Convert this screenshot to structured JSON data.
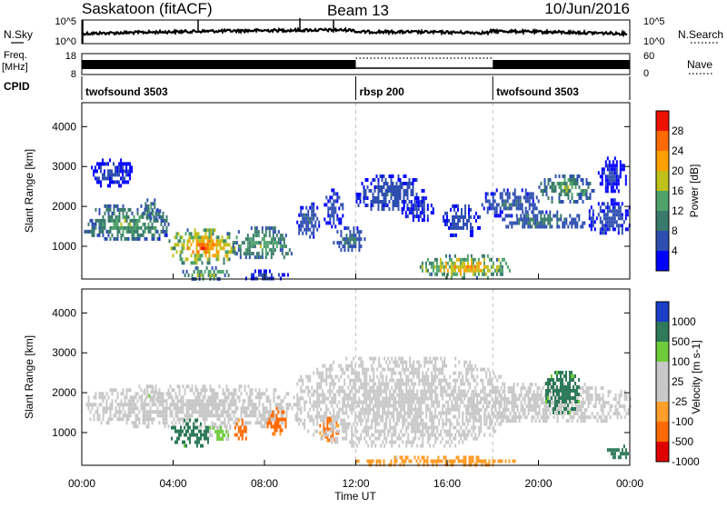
{
  "header": {
    "station": "Saskatoon (fitACF)",
    "beam": "Beam 13",
    "date": "10/Jun/2016"
  },
  "summary": {
    "nsky_label": "N.Sky",
    "nsky_ticks": [
      "10^5",
      "10^0"
    ],
    "nsearch_label": "N.Search",
    "nsearch_ticks": [
      "10^5",
      "10^0"
    ],
    "freq_label": "Freq.",
    "freq_unit": "[MHz]",
    "freq_ticks": [
      "18",
      "8"
    ],
    "nave_label": "Nave",
    "nave_ticks": [
      "60",
      "0"
    ],
    "cpid_label": "CPID",
    "cpid_segments": [
      {
        "start": 0,
        "end": 12,
        "label": "twofsound 3503"
      },
      {
        "start": 12,
        "end": 18,
        "label": "rbsp 200"
      },
      {
        "start": 18,
        "end": 24,
        "label": "twofsound 3503"
      }
    ]
  },
  "colors": {
    "power": [
      "#0000ff",
      "#2e4eb0",
      "#3a7a6c",
      "#4fa36a",
      "#c0c01a",
      "#ffa000",
      "#ff6a00",
      "#ee1100"
    ],
    "velocity": [
      "#e00000",
      "#ff6a00",
      "#ff9e2a",
      "#c8c8c8",
      "#c8c8c8",
      "#6ecc3a",
      "#2e7a5a",
      "#1a3ec8"
    ],
    "ground_scatter": "#c8c8c8"
  },
  "chart_data": [
    {
      "type": "heatmap",
      "panel": "power",
      "xlabel": "",
      "ylabel": "Slant Range [km]",
      "xlim": [
        0,
        24
      ],
      "ylim": [
        180,
        4600
      ],
      "yticks": [
        "1000",
        "2000",
        "3000",
        "4000"
      ],
      "xticks": [],
      "colorbar_label": "Power [dB]",
      "colorbar_ticks": [
        "4",
        "8",
        "12",
        "16",
        "20",
        "24",
        "28"
      ],
      "colorbar_range": [
        0,
        30
      ],
      "echo_regions": [
        {
          "t0": 0.1,
          "t1": 3.8,
          "r0": 1150,
          "r1": 2050,
          "value": 14
        },
        {
          "t0": 0.4,
          "t1": 2.2,
          "r0": 2550,
          "r1": 3200,
          "value": 5
        },
        {
          "t0": 2.6,
          "t1": 3.4,
          "r0": 1700,
          "r1": 2200,
          "value": 13
        },
        {
          "t0": 3.8,
          "t1": 6.8,
          "r0": 600,
          "r1": 1450,
          "value": 24
        },
        {
          "t0": 4.4,
          "t1": 6.4,
          "r0": 200,
          "r1": 500,
          "value": 16
        },
        {
          "t0": 6.6,
          "t1": 9.2,
          "r0": 700,
          "r1": 1500,
          "value": 14
        },
        {
          "t0": 7.0,
          "t1": 9.0,
          "r0": 200,
          "r1": 420,
          "value": 6
        },
        {
          "t0": 9.4,
          "t1": 10.4,
          "r0": 1250,
          "r1": 2100,
          "value": 8
        },
        {
          "t0": 10.6,
          "t1": 11.4,
          "r0": 1450,
          "r1": 2450,
          "value": 6
        },
        {
          "t0": 11.0,
          "t1": 12.4,
          "r0": 900,
          "r1": 1500,
          "value": 9
        },
        {
          "t0": 12.0,
          "t1": 15.0,
          "r0": 1900,
          "r1": 2800,
          "value": 7
        },
        {
          "t0": 14.0,
          "t1": 15.4,
          "r0": 1650,
          "r1": 2250,
          "value": 5
        },
        {
          "t0": 14.8,
          "t1": 18.8,
          "r0": 250,
          "r1": 800,
          "value": 22
        },
        {
          "t0": 15.8,
          "t1": 17.4,
          "r0": 1300,
          "r1": 2050,
          "value": 7
        },
        {
          "t0": 17.5,
          "t1": 20.0,
          "r0": 1800,
          "r1": 2450,
          "value": 8
        },
        {
          "t0": 18.4,
          "t1": 22.0,
          "r0": 1450,
          "r1": 1900,
          "value": 10
        },
        {
          "t0": 20.0,
          "t1": 22.4,
          "r0": 2150,
          "r1": 2800,
          "value": 14
        },
        {
          "t0": 22.2,
          "t1": 24.0,
          "r0": 1300,
          "r1": 2200,
          "value": 6
        },
        {
          "t0": 22.6,
          "t1": 23.8,
          "r0": 2400,
          "r1": 3250,
          "value": 5
        }
      ]
    },
    {
      "type": "heatmap",
      "panel": "velocity",
      "xlabel": "Time UT",
      "ylabel": "Slant Range [km]",
      "xlim": [
        0,
        24
      ],
      "ylim": [
        180,
        4600
      ],
      "yticks": [
        "1000",
        "2000",
        "3000",
        "4000"
      ],
      "xticks": [
        "00:00",
        "04:00",
        "08:00",
        "12:00",
        "16:00",
        "20:00",
        "00:00"
      ],
      "colorbar_label": "Velocity [m s-1]",
      "colorbar_ticks": [
        "1000",
        "500",
        "100",
        "25",
        "-25",
        "-100",
        "-500",
        "-1000"
      ],
      "colorbar_range": [
        -1000,
        1000
      ],
      "echo_regions": [
        {
          "t0": 0.1,
          "t1": 9.6,
          "r0": 1150,
          "r1": 2200,
          "value": 0
        },
        {
          "t0": 2.6,
          "t1": 3.3,
          "r0": 1750,
          "r1": 2150,
          "value": 30
        },
        {
          "t0": 3.9,
          "t1": 5.6,
          "r0": 700,
          "r1": 1350,
          "value": 300
        },
        {
          "t0": 5.5,
          "t1": 6.5,
          "r0": 800,
          "r1": 1250,
          "value": 40
        },
        {
          "t0": 6.6,
          "t1": 7.2,
          "r0": 800,
          "r1": 1350,
          "value": -300
        },
        {
          "t0": 8.1,
          "t1": 8.9,
          "r0": 1000,
          "r1": 1650,
          "value": -250
        },
        {
          "t0": 10.4,
          "t1": 11.2,
          "r0": 800,
          "r1": 1400,
          "value": -200
        },
        {
          "t0": 9.4,
          "t1": 18.5,
          "r0": 700,
          "r1": 2900,
          "value": 0
        },
        {
          "t0": 12.0,
          "t1": 19.0,
          "r0": 200,
          "r1": 420,
          "value": -90
        },
        {
          "t0": 16.5,
          "t1": 24.0,
          "r0": 1250,
          "r1": 2250,
          "value": 0
        },
        {
          "t0": 20.3,
          "t1": 21.8,
          "r0": 1500,
          "r1": 2550,
          "value": 250
        },
        {
          "t0": 23.0,
          "t1": 24.0,
          "r0": 400,
          "r1": 700,
          "value": 400
        }
      ]
    }
  ]
}
